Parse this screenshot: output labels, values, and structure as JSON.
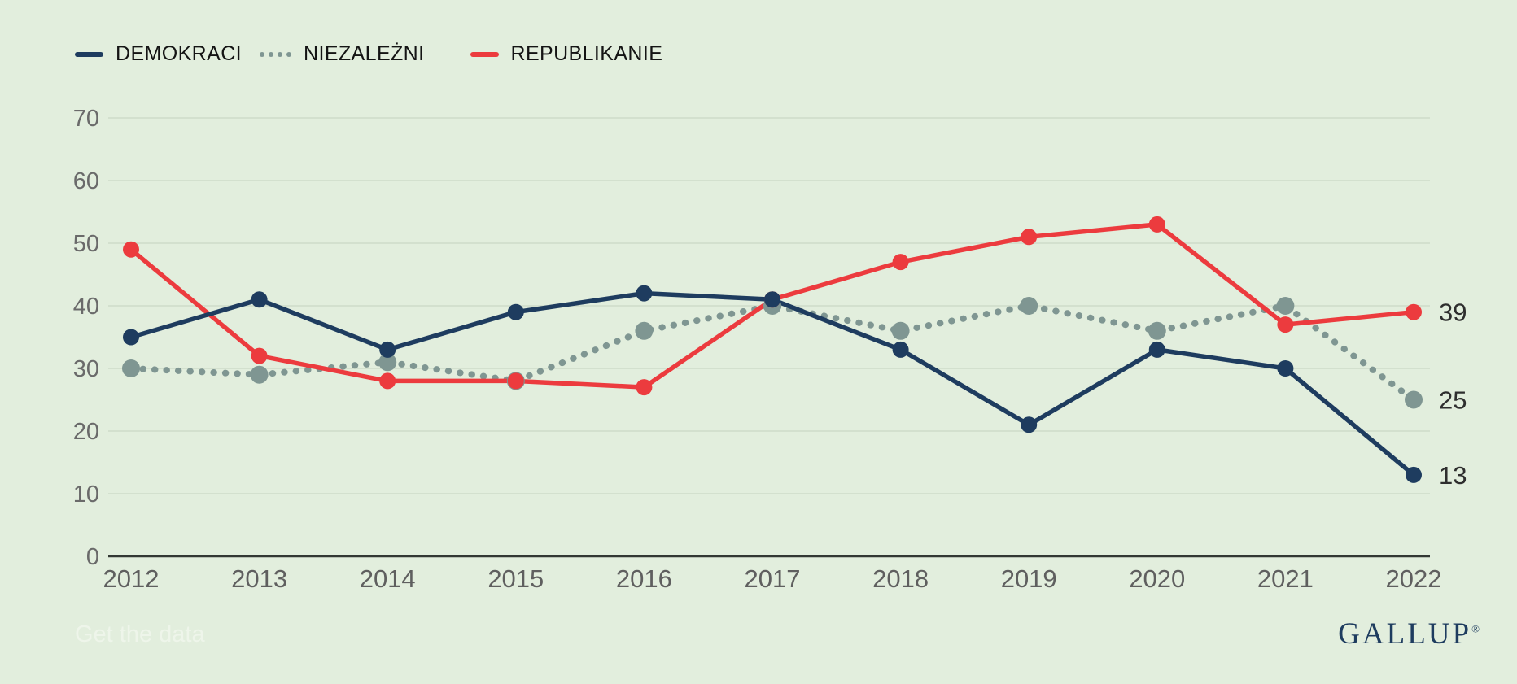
{
  "legend": [
    {
      "label": "DEMOKRACI",
      "color": "#1e3c5f",
      "style": "solid"
    },
    {
      "label": "NIEZALEŻNI",
      "color": "#7f9692",
      "style": "dotted"
    },
    {
      "label": "REPUBLIKANIE",
      "color": "#ec3b3e",
      "style": "solid"
    }
  ],
  "chart_data": {
    "type": "line",
    "x": [
      2012,
      2013,
      2014,
      2015,
      2016,
      2017,
      2018,
      2019,
      2020,
      2021,
      2022
    ],
    "series": [
      {
        "name": "DEMOKRACI",
        "color": "#1e3c5f",
        "dash": "solid",
        "values": [
          35,
          41,
          33,
          39,
          42,
          41,
          33,
          21,
          33,
          30,
          13
        ],
        "end_label": "13"
      },
      {
        "name": "NIEZALEŻNI",
        "color": "#7f9692",
        "dash": "dotted",
        "values": [
          30,
          29,
          31,
          28,
          36,
          40,
          36,
          40,
          36,
          40,
          25
        ],
        "end_label": "25"
      },
      {
        "name": "REPUBLIKANIE",
        "color": "#ec3b3e",
        "dash": "solid",
        "values": [
          49,
          32,
          28,
          28,
          27,
          41,
          47,
          51,
          53,
          37,
          39
        ],
        "end_label": "39"
      }
    ],
    "title": "",
    "xlabel": "",
    "ylabel": "",
    "ylim": [
      0,
      70
    ],
    "yticks": [
      0,
      10,
      20,
      30,
      40,
      50,
      60,
      70
    ],
    "grid": true,
    "legend_position": "top-left"
  },
  "axis": {
    "tick_color": "#6a6a6a",
    "xlabel_color": "#5f5f5f",
    "grid_color": "#cedbc9",
    "axis_line_color": "#323833",
    "end_label_color": "#2e2e2e"
  },
  "footer": {
    "get_data_label": "Get the data",
    "brand": "GALLUP",
    "brand_mark": "®"
  }
}
